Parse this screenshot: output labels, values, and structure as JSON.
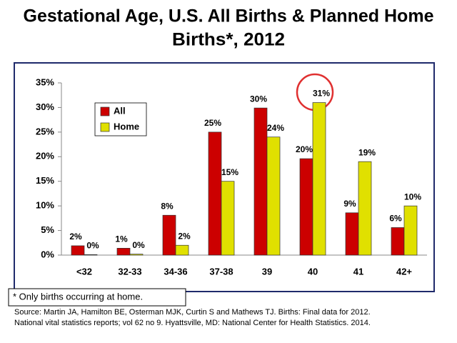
{
  "chart_data": {
    "type": "bar",
    "title": [
      "Gestational Age, U.S. All Births & Planned Home",
      "Births*, 2012"
    ],
    "categories": [
      "<32",
      "32-33",
      "34-36",
      "37-38",
      "39",
      "40",
      "41",
      "42+"
    ],
    "series": [
      {
        "name": "All",
        "color": "#cc0000",
        "values": [
          1.9,
          1.4,
          8.1,
          25,
          29.9,
          19.6,
          8.6,
          5.6
        ],
        "value_labels": [
          "2%",
          "1%",
          "8%",
          "25%",
          "30%",
          "20%",
          "9%",
          "6%"
        ]
      },
      {
        "name": "Home",
        "color": "#e0e000",
        "values": [
          0.1,
          0.2,
          2,
          15,
          24,
          31,
          19,
          10
        ],
        "value_labels": [
          "0%",
          "0%",
          "2%",
          "15%",
          "24%",
          "31%",
          "19%",
          "10%"
        ]
      }
    ],
    "ylim": [
      0,
      35
    ],
    "yticks": [
      {
        "value": 0,
        "label": "0%"
      },
      {
        "value": 5,
        "label": "5%"
      },
      {
        "value": 10,
        "label": "10%"
      },
      {
        "value": 15,
        "label": "15%"
      },
      {
        "value": 20,
        "label": "20%"
      },
      {
        "value": 25,
        "label": "25%"
      },
      {
        "value": 30,
        "label": "30%"
      },
      {
        "value": 35,
        "label": "35%"
      }
    ],
    "legend": "upper left",
    "footnote": "* Only births occurring at home.",
    "source": [
      "Source: Martin JA, Hamilton BE, Osterman MJK, Curtin S and Mathews TJ. Births: Final data for 2012.",
      "National vital statistics reports; vol 62 no 9. Hyattsville, MD: National Center for Health Statistics. 2014."
    ]
  }
}
